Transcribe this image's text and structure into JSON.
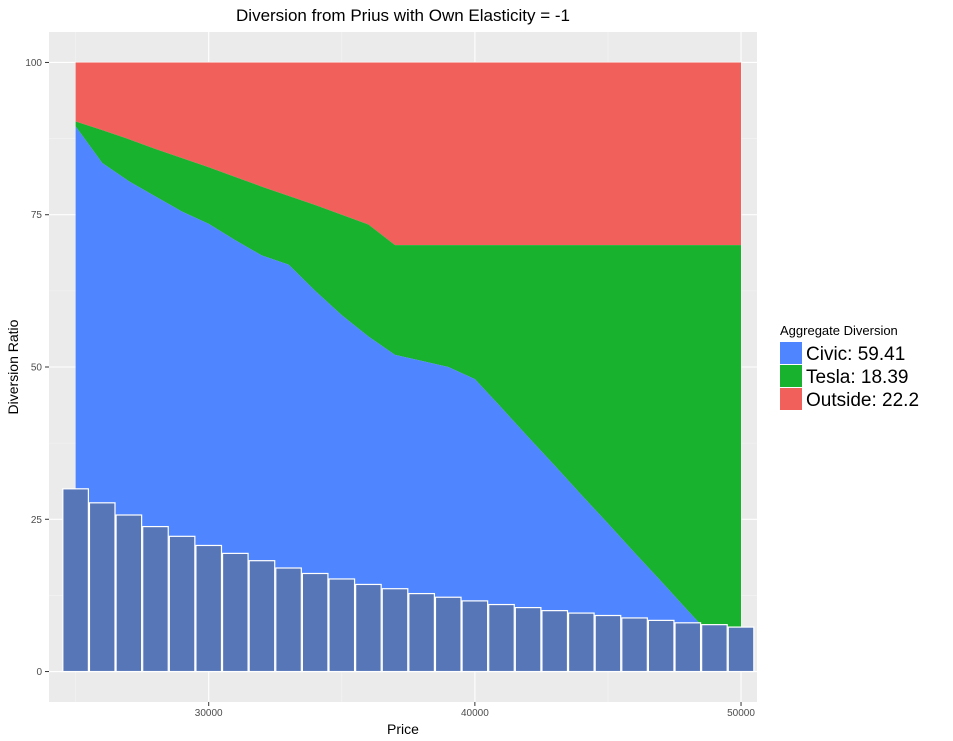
{
  "chart_data": {
    "type": "area",
    "title": "Diversion from Prius with Own Elasticity = -1",
    "xlabel": "Price",
    "ylabel": "Diversion Ratio",
    "xlim": [
      24000,
      50600
    ],
    "ylim": [
      -5,
      105
    ],
    "x_ticks": [
      30000,
      40000,
      50000
    ],
    "y_ticks": [
      0,
      25,
      50,
      75,
      100
    ],
    "grid": true,
    "legend": {
      "title": "Aggregate Diversion",
      "position": "right",
      "entries": [
        {
          "label": "Civic:  59.41",
          "color": "#4F86FF"
        },
        {
          "label": "Tesla:  18.39",
          "color": "#19B22F"
        },
        {
          "label": "Outside:  22.2",
          "color": "#F2605B"
        }
      ]
    },
    "areas": {
      "x": [
        25000,
        26000,
        27000,
        28000,
        29000,
        30000,
        31000,
        32000,
        33000,
        34000,
        35000,
        36000,
        37000,
        38000,
        39000,
        40000,
        41000,
        42000,
        43000,
        44000,
        45000,
        46000,
        47000,
        48000,
        49000,
        50000
      ],
      "civic_top": [
        89.5,
        83.5,
        80.5,
        78.0,
        75.5,
        73.5,
        70.8,
        68.3,
        66.8,
        62.5,
        58.5,
        55.0,
        52.0,
        51.0,
        50.0,
        48.0,
        43.3,
        38.5,
        33.8,
        29.0,
        24.3,
        19.5,
        14.8,
        10.0,
        5.3,
        0.5
      ],
      "tesla_top": [
        90.3,
        88.9,
        87.4,
        85.8,
        84.3,
        82.8,
        81.2,
        79.6,
        78.1,
        76.6,
        75.0,
        73.4,
        70.0,
        70.0,
        70.0,
        70.0,
        70.0,
        70.0,
        70.0,
        70.0,
        70.0,
        70.0,
        70.0,
        70.0,
        70.0,
        70.0
      ],
      "outside_top": 100,
      "colors": {
        "civic": "#4F86FF",
        "tesla": "#19B22F",
        "outside": "#F2605B"
      }
    },
    "bars": {
      "x": [
        25000,
        26000,
        27000,
        28000,
        29000,
        30000,
        31000,
        32000,
        33000,
        34000,
        35000,
        36000,
        37000,
        38000,
        39000,
        40000,
        41000,
        42000,
        43000,
        44000,
        45000,
        46000,
        47000,
        48000,
        49000,
        50000
      ],
      "values": [
        30.0,
        27.7,
        25.7,
        23.8,
        22.2,
        20.7,
        19.4,
        18.2,
        17.0,
        16.1,
        15.2,
        14.3,
        13.6,
        12.8,
        12.2,
        11.6,
        11.0,
        10.5,
        10.0,
        9.6,
        9.2,
        8.8,
        8.4,
        8.0,
        7.7,
        7.3
      ],
      "color": "#3C66BD",
      "overflow_color": "#A9A9A9",
      "outline": "#ffffff"
    }
  }
}
